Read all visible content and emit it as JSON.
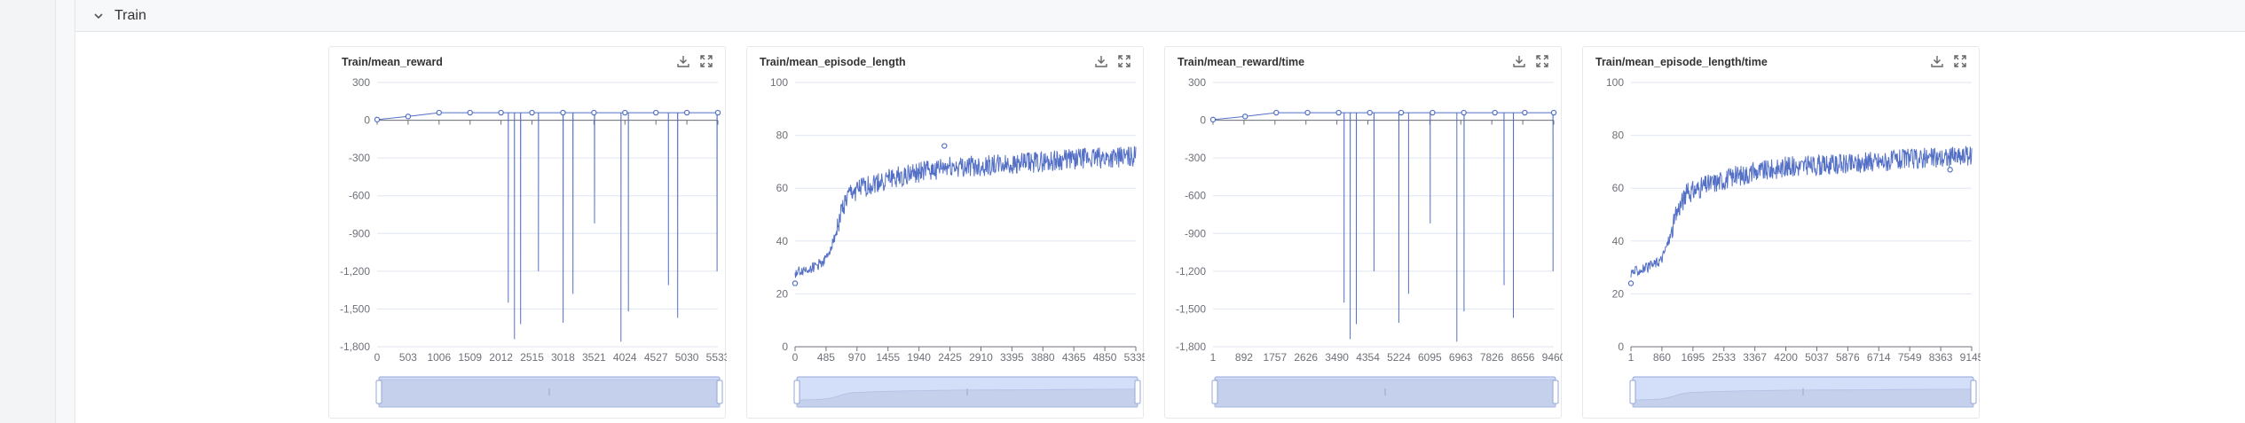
{
  "section": {
    "title": "Train"
  },
  "colors": {
    "series": "#5470c6",
    "axis": "#6e7079",
    "grid": "#e0e6f1",
    "slider_fill": "#d3def8",
    "slider_border": "#94a7d9"
  },
  "icons": {
    "collapse": "chevron-down-icon",
    "download": "download-icon",
    "fullscreen": "fullscreen-icon"
  },
  "charts": [
    {
      "title": "Train/mean_reward",
      "chart_data": {
        "type": "line",
        "title": "Train/mean_reward",
        "xlim": [
          0,
          5533
        ],
        "ylim": [
          -1800,
          300
        ],
        "x_ticks": [
          "0",
          "503",
          "1006",
          "1509",
          "2012",
          "2515",
          "3018",
          "3521",
          "4024",
          "4527",
          "5030",
          "5533"
        ],
        "y_ticks": [
          "300",
          "0",
          "-300",
          "-600",
          "-900",
          "-1,200",
          "-1,500",
          "-1,800"
        ],
        "baseline": [
          [
            0,
            5
          ],
          [
            503,
            30
          ],
          [
            1006,
            60
          ],
          [
            1509,
            60
          ],
          [
            2012,
            60
          ],
          [
            2515,
            60
          ],
          [
            3018,
            60
          ],
          [
            3521,
            60
          ],
          [
            4024,
            60
          ],
          [
            4527,
            60
          ],
          [
            5030,
            60
          ],
          [
            5533,
            60
          ]
        ],
        "markers": [
          [
            0,
            5
          ],
          [
            503,
            30
          ],
          [
            1006,
            60
          ],
          [
            1509,
            60
          ],
          [
            2012,
            60
          ],
          [
            2515,
            60
          ],
          [
            3018,
            60
          ],
          [
            3521,
            60
          ],
          [
            4024,
            60
          ],
          [
            4527,
            60
          ],
          [
            5030,
            60
          ],
          [
            5533,
            60
          ]
        ],
        "spikes": [
          [
            2130,
            -1450
          ],
          [
            2230,
            -1740
          ],
          [
            2330,
            -1620
          ],
          [
            2620,
            -1200
          ],
          [
            3020,
            -1610
          ],
          [
            3180,
            -1380
          ],
          [
            3530,
            -820
          ],
          [
            3960,
            -1760
          ],
          [
            4080,
            -1520
          ],
          [
            4730,
            -1310
          ],
          [
            4880,
            -1570
          ],
          [
            5520,
            -1200
          ]
        ],
        "grid": true
      }
    },
    {
      "title": "Train/mean_episode_length",
      "chart_data": {
        "type": "line",
        "title": "Train/mean_episode_length",
        "xlim": [
          0,
          5533
        ],
        "ylim": [
          0,
          100
        ],
        "x_ticks": [
          "0",
          "485",
          "970",
          "1455",
          "1940",
          "2425",
          "2910",
          "3395",
          "3880",
          "4365",
          "4850",
          "5335"
        ],
        "y_ticks": [
          "100",
          "80",
          "60",
          "40",
          "20",
          "0"
        ],
        "curve": [
          [
            0,
            28
          ],
          [
            300,
            30
          ],
          [
            500,
            33
          ],
          [
            650,
            42
          ],
          [
            760,
            52
          ],
          [
            900,
            58
          ],
          [
            1200,
            61
          ],
          [
            1600,
            64
          ],
          [
            2000,
            66
          ],
          [
            2500,
            68
          ],
          [
            3000,
            68.5
          ],
          [
            3500,
            69
          ],
          [
            4000,
            70
          ],
          [
            4500,
            71
          ],
          [
            5000,
            71.5
          ],
          [
            5533,
            72
          ]
        ],
        "noise": 4,
        "markers": [
          [
            0,
            24
          ],
          [
            2425,
            76
          ]
        ],
        "grid": true
      }
    },
    {
      "title": "Train/mean_reward/time",
      "chart_data": {
        "type": "line",
        "title": "Train/mean_reward/time",
        "xlim": [
          1,
          9460
        ],
        "ylim": [
          -1800,
          300
        ],
        "x_ticks": [
          "1",
          "892",
          "1757",
          "2626",
          "3490",
          "4354",
          "5224",
          "6095",
          "6963",
          "7826",
          "8656",
          "9460"
        ],
        "y_ticks": [
          "300",
          "0",
          "-300",
          "-600",
          "-900",
          "-1,200",
          "-1,500",
          "-1,800"
        ],
        "baseline": [
          [
            1,
            5
          ],
          [
            892,
            30
          ],
          [
            1757,
            60
          ],
          [
            2626,
            60
          ],
          [
            3490,
            60
          ],
          [
            4354,
            60
          ],
          [
            5224,
            60
          ],
          [
            6095,
            60
          ],
          [
            6963,
            60
          ],
          [
            7826,
            60
          ],
          [
            8656,
            60
          ],
          [
            9460,
            60
          ]
        ],
        "markers": [
          [
            1,
            5
          ],
          [
            892,
            30
          ],
          [
            1757,
            60
          ],
          [
            2626,
            60
          ],
          [
            3490,
            60
          ],
          [
            4354,
            60
          ],
          [
            5224,
            60
          ],
          [
            6095,
            60
          ],
          [
            6963,
            60
          ],
          [
            7826,
            60
          ],
          [
            8656,
            60
          ],
          [
            9460,
            60
          ]
        ],
        "spikes": [
          [
            3640,
            -1450
          ],
          [
            3810,
            -1740
          ],
          [
            3980,
            -1620
          ],
          [
            4470,
            -1200
          ],
          [
            5160,
            -1610
          ],
          [
            5430,
            -1380
          ],
          [
            6030,
            -820
          ],
          [
            6770,
            -1760
          ],
          [
            6970,
            -1520
          ],
          [
            8080,
            -1310
          ],
          [
            8340,
            -1570
          ],
          [
            9440,
            -1200
          ]
        ],
        "grid": true
      }
    },
    {
      "title": "Train/mean_episode_length/time",
      "chart_data": {
        "type": "line",
        "title": "Train/mean_episode_length/time",
        "xlim": [
          1,
          9460
        ],
        "ylim": [
          0,
          100
        ],
        "x_ticks": [
          "1",
          "860",
          "1695",
          "2533",
          "3367",
          "4200",
          "5037",
          "5876",
          "6714",
          "7549",
          "8363",
          "9145"
        ],
        "y_ticks": [
          "100",
          "80",
          "60",
          "40",
          "20",
          "0"
        ],
        "curve": [
          [
            1,
            28
          ],
          [
            500,
            30
          ],
          [
            850,
            33
          ],
          [
            1100,
            42
          ],
          [
            1300,
            52
          ],
          [
            1550,
            58
          ],
          [
            2050,
            61
          ],
          [
            2750,
            64
          ],
          [
            3400,
            66
          ],
          [
            4300,
            68
          ],
          [
            5100,
            68.5
          ],
          [
            6000,
            69
          ],
          [
            6850,
            70
          ],
          [
            7700,
            71
          ],
          [
            8550,
            71.5
          ],
          [
            9460,
            72
          ]
        ],
        "noise": 4,
        "markers": [
          [
            1,
            24
          ],
          [
            8860,
            67
          ]
        ],
        "grid": true
      }
    }
  ]
}
